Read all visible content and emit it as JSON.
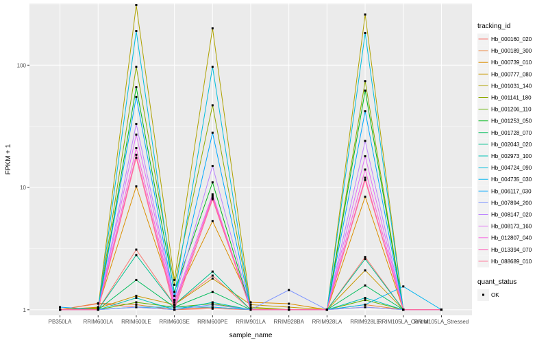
{
  "chart_data": {
    "type": "line",
    "xlabel": "sample_name",
    "ylabel": "FPKM + 1",
    "y_scale": "log10",
    "ylim": [
      0.9,
      320
    ],
    "y_ticks": [
      1,
      10,
      100
    ],
    "y_tick_labels": [
      "1",
      "10",
      "100"
    ],
    "grid": true,
    "legend_position": "right",
    "categories": [
      "PB350LA",
      "RRIM600LA",
      "RRIM600LE",
      "RRIM600SE",
      "RRIM600PE",
      "RRIM901LA",
      "RRIM928BA",
      "RRIM928LA",
      "RRIM928LE",
      "RRIM105LA_Control",
      "RRIM105LA_Stressed"
    ],
    "legend_title": "tracking_id",
    "series": [
      {
        "name": "Hb_000160_020",
        "color": "#F8766D",
        "values": [
          1.0,
          1.12,
          1.05,
          1.0,
          1.02,
          1.0,
          1.0,
          1.0,
          1.05,
          1.0,
          1.0
        ]
      },
      {
        "name": "Hb_000189_300",
        "color": "#EC8239",
        "values": [
          1.0,
          1.13,
          1.1,
          1.0,
          1.05,
          1.0,
          1.0,
          1.0,
          1.1,
          1.0,
          1.0
        ]
      },
      {
        "name": "Hb_000739_010",
        "color": "#DB8E00",
        "values": [
          1.0,
          1.05,
          10.2,
          1.2,
          5.3,
          1.15,
          1.12,
          1.0,
          8.4,
          1.0,
          1.0
        ]
      },
      {
        "name": "Hb_000777_080",
        "color": "#C79800",
        "values": [
          1.0,
          1.03,
          1.3,
          1.1,
          1.8,
          1.1,
          1.05,
          1.0,
          2.1,
          1.0,
          1.0
        ]
      },
      {
        "name": "Hb_001031_140",
        "color": "#AEA200",
        "values": [
          1.0,
          1.04,
          310,
          1.75,
          200,
          1.05,
          1.0,
          1.0,
          260,
          1.0,
          1.0
        ]
      },
      {
        "name": "Hb_001141_180",
        "color": "#8FAA00",
        "values": [
          1.0,
          1.02,
          97,
          1.6,
          47,
          1.03,
          1.0,
          1.0,
          74,
          1.0,
          1.0
        ]
      },
      {
        "name": "Hb_001206_110",
        "color": "#64B200",
        "values": [
          1.0,
          1.0,
          1.15,
          1.05,
          1.12,
          1.0,
          1.0,
          1.0,
          1.2,
          1.0,
          1.0
        ]
      },
      {
        "name": "Hb_001253_050",
        "color": "#00B81B",
        "values": [
          1.0,
          1.0,
          66,
          1.4,
          11,
          1.0,
          1.0,
          1.0,
          62,
          1.0,
          1.0
        ]
      },
      {
        "name": "Hb_001728_070",
        "color": "#00BD5C",
        "values": [
          1.0,
          1.0,
          1.75,
          1.05,
          1.4,
          1.0,
          1.0,
          1.0,
          1.58,
          1.0,
          1.0
        ]
      },
      {
        "name": "Hb_002043_020",
        "color": "#00C08E",
        "values": [
          1.0,
          1.0,
          2.8,
          1.1,
          2.05,
          1.0,
          1.0,
          1.0,
          2.6,
          1.0,
          1.0
        ]
      },
      {
        "name": "Hb_002973_100",
        "color": "#00C1B7",
        "values": [
          1.0,
          1.0,
          1.25,
          1.0,
          1.15,
          1.0,
          1.0,
          1.0,
          1.25,
          1.0,
          1.0
        ]
      },
      {
        "name": "Hb_004724_090",
        "color": "#00BDDC",
        "values": [
          1.0,
          1.0,
          190,
          1.3,
          97,
          1.0,
          1.0,
          1.0,
          183,
          1.0,
          1.0
        ]
      },
      {
        "name": "Hb_004735_030",
        "color": "#00B4F0",
        "values": [
          1.0,
          1.0,
          1.05,
          1.05,
          1.05,
          1.0,
          1.0,
          1.0,
          1.1,
          1.55,
          1.0
        ]
      },
      {
        "name": "Hb_006117_030",
        "color": "#00A8FF",
        "values": [
          1.05,
          1.0,
          55,
          1.2,
          28,
          1.0,
          1.0,
          1.0,
          42,
          1.0,
          1.0
        ]
      },
      {
        "name": "Hb_007894_200",
        "color": "#7F96FF",
        "values": [
          1.0,
          1.0,
          1.05,
          1.0,
          1.1,
          1.0,
          1.45,
          1.0,
          1.05,
          1.0,
          1.0
        ]
      },
      {
        "name": "Hb_008147_020",
        "color": "#BB83FF",
        "values": [
          1.0,
          1.0,
          33,
          1.2,
          15,
          1.0,
          1.0,
          1.0,
          24,
          1.0,
          1.0
        ]
      },
      {
        "name": "Hb_008173_160",
        "color": "#E26EF7",
        "values": [
          1.0,
          1.0,
          27,
          1.15,
          8.8,
          1.0,
          1.0,
          1.0,
          18,
          1.0,
          1.0
        ]
      },
      {
        "name": "Hb_012807_040",
        "color": "#F763E0",
        "values": [
          1.0,
          1.0,
          21,
          1.1,
          8.2,
          1.0,
          1.0,
          1.0,
          14,
          1.0,
          1.0
        ]
      },
      {
        "name": "Hb_013394_070",
        "color": "#FF65BC",
        "values": [
          1.0,
          1.0,
          18.5,
          1.05,
          8.5,
          1.0,
          1.0,
          1.0,
          12,
          1.0,
          1.0
        ]
      },
      {
        "name": "Hb_088689_010",
        "color": "#FF6C91",
        "values": [
          1.0,
          1.0,
          17.5,
          1.0,
          8.0,
          1.0,
          1.0,
          1.0,
          11.5,
          1.0,
          1.0
        ]
      }
    ],
    "extra_series_bottom": {
      "name": "",
      "color": "#F8766D",
      "values": [
        1.0,
        1.0,
        3.1,
        1.1,
        1.9,
        1.0,
        1.0,
        1.0,
        2.7,
        1.0,
        1.0
      ]
    },
    "shape_legend": {
      "title": "quant_status",
      "items": [
        "OK"
      ]
    }
  }
}
